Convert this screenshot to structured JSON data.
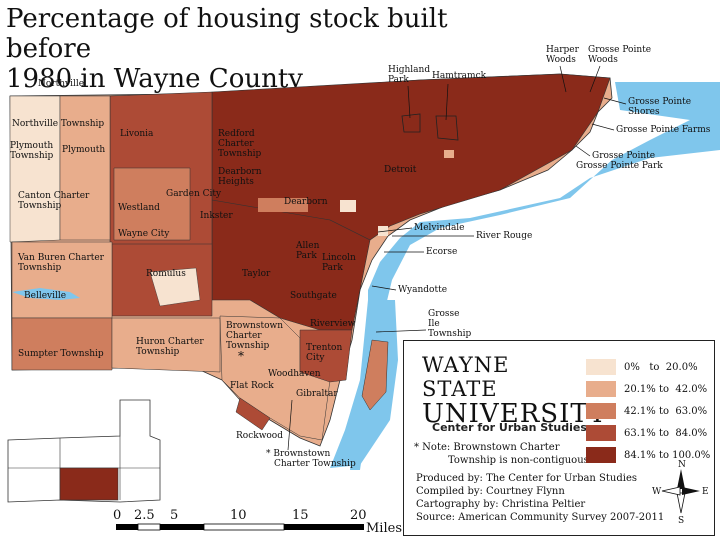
{
  "title_line1": "Percentage of housing stock built before",
  "title_line2": "1980 in Wayne County",
  "colors": {
    "water": "#7fc6ec",
    "c1": "#f7e3d0",
    "c2": "#e8ad8c",
    "c3": "#cf7e5e",
    "c4": "#ad4b36",
    "c5": "#8a2a1a"
  },
  "places": {
    "northville": "Northville",
    "northville_twp": "Northville Township",
    "plymouth_twp": "Plymouth Township",
    "plymouth": "Plymouth",
    "livonia": "Livonia",
    "redford": "Redford Charter Township",
    "canton": "Canton Charter Township",
    "garden_city": "Garden City",
    "dearborn_heights": "Dearborn Heights",
    "westland": "Westland",
    "inkster": "Inkster",
    "wayne_city": "Wayne City",
    "dearborn": "Dearborn",
    "detroit": "Detroit",
    "highland_park": "Highland Park",
    "hamtramck": "Hamtramck",
    "harper_woods": "Harper Woods",
    "gp_woods": "Grosse Pointe Woods",
    "gp_shores": "Grosse Pointe Shores",
    "gp_farms": "Grosse Pointe Farms",
    "gp": "Grosse Pointe",
    "gp_park": "Grosse Pointe Park",
    "melvindale": "Melvindale",
    "river_rouge": "River Rouge",
    "ecorse": "Ecorse",
    "allen_park": "Allen Park",
    "lincoln_park": "Lincoln Park",
    "van_buren": "Van Buren Charter Township",
    "belleville": "Belleville",
    "romulus": "Romulus",
    "taylor": "Taylor",
    "southgate": "Southgate",
    "wyandotte": "Wyandotte",
    "grosse_ile": "Grosse Ile Township",
    "riverview": "Riverview",
    "sumpter": "Sumpter Township",
    "huron": "Huron Charter Township",
    "brownstown": "Brownstown Charter Township",
    "trenton": "Trenton City",
    "woodhaven": "Woodhaven",
    "flat_rock": "Flat Rock",
    "gibraltar": "Gibraltar",
    "rockwood": "Rockwood",
    "brownstown_star": "* Brownstown Charter Township",
    "star": "*"
  },
  "scale": {
    "ticks": [
      "0",
      "2.5",
      "5",
      "10",
      "15",
      "20"
    ],
    "unit": "Miles"
  },
  "legend": {
    "logo_line1": "WAYNE STATE",
    "logo_line2": "UNIVERSITY",
    "center": "Center for Urban Studies",
    "note_line1": "* Note: Brownstown Charter",
    "note_line2": "Township is non-contiguous",
    "classes": [
      "0%   to  20.0%",
      "20.1% to  42.0%",
      "42.1% to  63.0%",
      "63.1% to  84.0%",
      "84.1% to 100.0%"
    ],
    "credits": [
      "Produced by: The Center for Urban Studies",
      "Compiled by: Courtney Flynn",
      "Cartography by: Christina Peltier",
      "Source: American Community Survey 2007-2011"
    ],
    "compass": {
      "n": "N",
      "s": "S",
      "e": "E",
      "w": "W"
    }
  }
}
